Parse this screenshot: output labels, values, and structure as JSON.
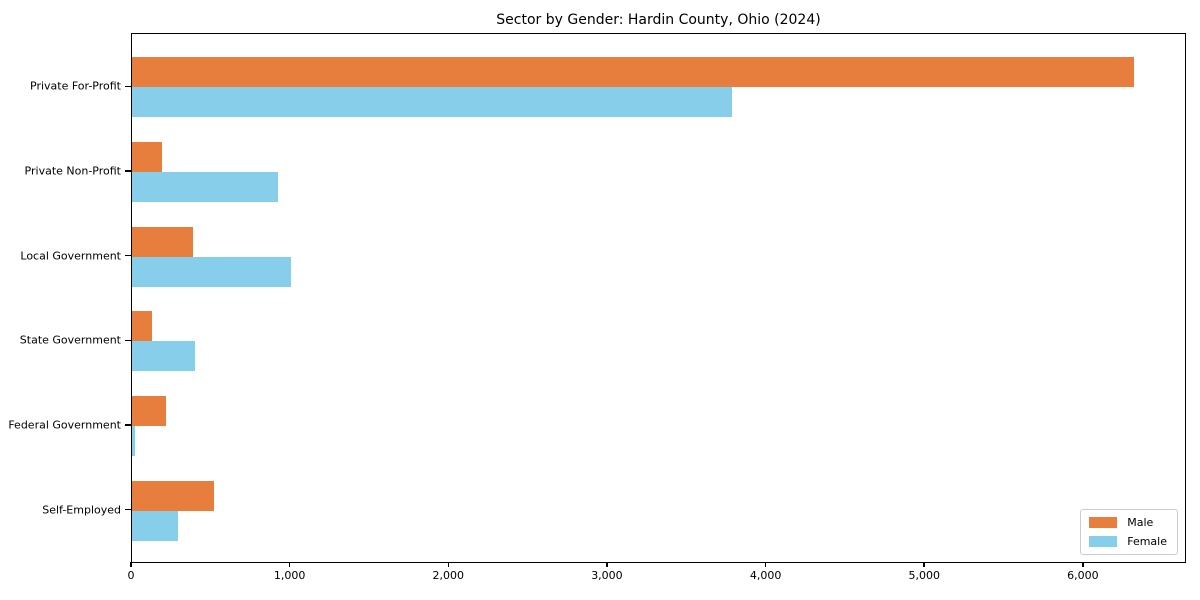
{
  "chart_data": {
    "type": "bar",
    "orientation": "horizontal",
    "title": "Sector by Gender: Hardin County, Ohio (2024)",
    "categories": [
      "Private For-Profit",
      "Private Non-Profit",
      "Local Government",
      "State Government",
      "Federal Government",
      "Self-Employed"
    ],
    "series": [
      {
        "name": "Male",
        "color": "#E87E3E",
        "values": [
          6330,
          190,
          385,
          125,
          215,
          515
        ]
      },
      {
        "name": "Female",
        "color": "#87CEEB",
        "values": [
          3790,
          920,
          1005,
          395,
          20,
          290
        ]
      }
    ],
    "xlim": [
      0,
      6650
    ],
    "xticks": [
      0,
      1000,
      2000,
      3000,
      4000,
      5000,
      6000
    ],
    "xtick_labels": [
      "0",
      "1,000",
      "2,000",
      "3,000",
      "4,000",
      "5,000",
      "6,000"
    ],
    "ylabel": "",
    "xlabel": "",
    "grid": false,
    "legend_position": "lower right",
    "colors": {
      "spine": "#000000",
      "legend_border": "#cccccc",
      "background": "#ffffff"
    }
  }
}
